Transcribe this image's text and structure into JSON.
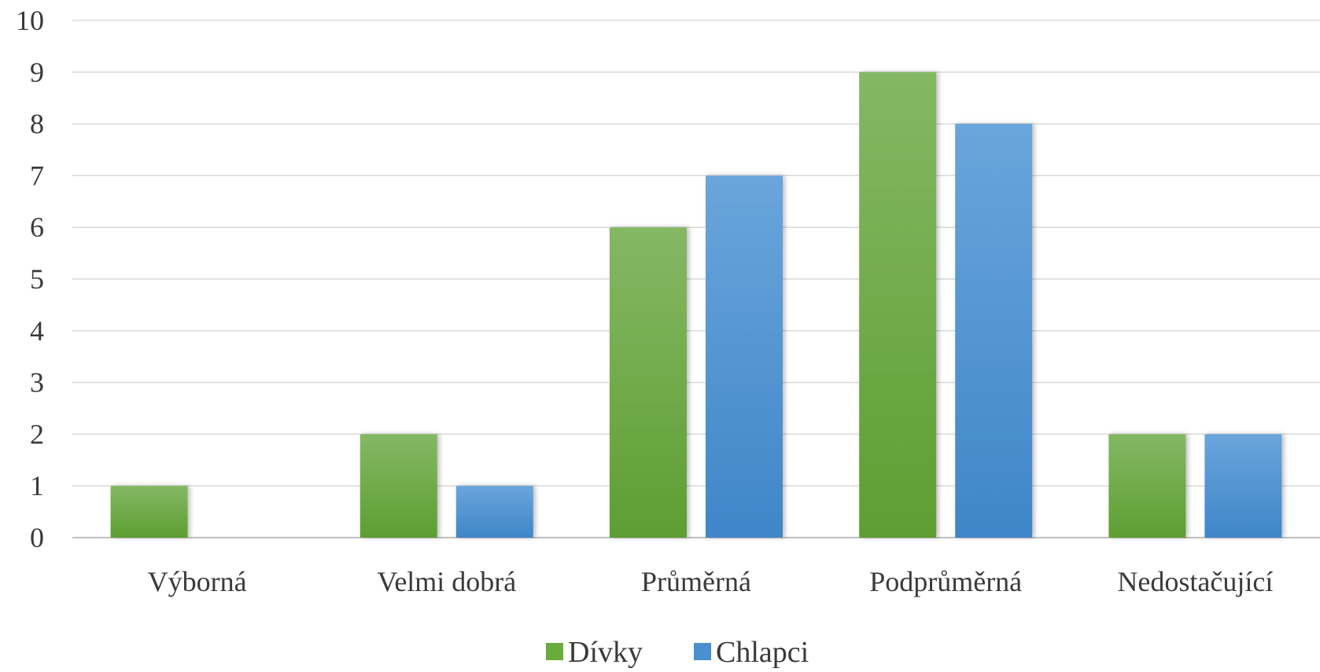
{
  "chart_data": {
    "type": "bar",
    "categories": [
      "Výborná",
      "Velmi dobrá",
      "Průměrná",
      "Podprůměrná",
      "Nedostačující"
    ],
    "series": [
      {
        "name": "Dívky",
        "values": [
          1,
          2,
          6,
          9,
          2
        ],
        "color": "#6aab3e"
      },
      {
        "name": "Chlapci",
        "values": [
          0,
          1,
          7,
          8,
          2
        ],
        "color": "#4a8fd0"
      }
    ],
    "ylim": [
      0,
      10
    ],
    "yticks": [
      "0",
      "1",
      "2",
      "3",
      "4",
      "5",
      "6",
      "7",
      "8",
      "9",
      "10"
    ],
    "grid": true,
    "legend_position": "bottom",
    "title": "",
    "xlabel": "",
    "ylabel": ""
  }
}
